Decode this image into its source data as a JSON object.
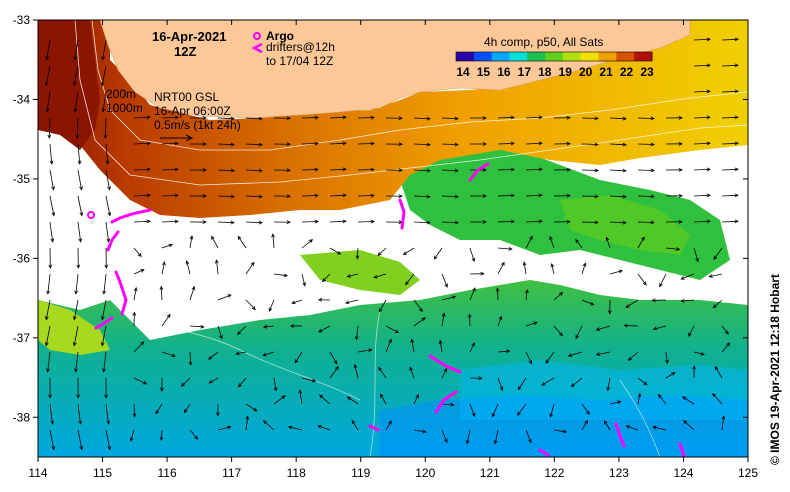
{
  "title": {
    "date": "16-Apr-2021",
    "time": "12Z"
  },
  "argo": {
    "label": "Argo",
    "color": "#ff00ff"
  },
  "drifters": {
    "line1": "drifters@12h",
    "line2": "to 17/04 12Z",
    "color": "#ff00ff"
  },
  "isobaths": {
    "shallow": "200m",
    "deep": "1000m"
  },
  "currents": {
    "product": "NRT00 GSL",
    "time": "16-Apr 06:00Z",
    "scale": "0.5m/s (1kt 24h)"
  },
  "colorbar": {
    "title": "4h comp, p50, All Sats",
    "ticks": [
      "14",
      "15",
      "16",
      "17",
      "18",
      "19",
      "20",
      "21",
      "22",
      "23"
    ],
    "colors": [
      "#2a00a8",
      "#0050ff",
      "#00a8ff",
      "#00e0d8",
      "#20c050",
      "#60d020",
      "#b0e010",
      "#f0e000",
      "#f0a000",
      "#d85000",
      "#b01000"
    ]
  },
  "axes": {
    "x_ticks": [
      "114",
      "115",
      "116",
      "117",
      "118",
      "119",
      "120",
      "121",
      "122",
      "123",
      "124",
      "125"
    ],
    "y_ticks": [
      "-33",
      "-34",
      "-35",
      "-36",
      "-37",
      "-38"
    ],
    "lon_range": [
      114,
      125
    ],
    "lat_range": [
      -38.5,
      -33
    ]
  },
  "land_color": "#fcc898",
  "credit": "© IMOS 19-Apr-2021 12:18 Hobart"
}
